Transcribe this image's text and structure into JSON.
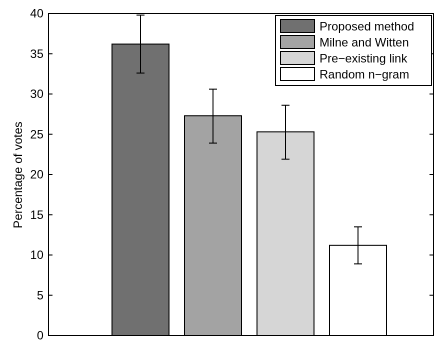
{
  "chart_data": {
    "type": "bar",
    "title": "",
    "xlabel": "",
    "ylabel": "Percentage of votes",
    "ylim": [
      0,
      40
    ],
    "yticks": [
      0,
      5,
      10,
      15,
      20,
      25,
      30,
      35,
      40
    ],
    "grid": false,
    "legend_position": "top-right",
    "series": [
      {
        "name": "Proposed method",
        "value": 36.2,
        "error_low": 32.6,
        "error_high": 39.8,
        "color": "#707070"
      },
      {
        "name": "Milne and Witten",
        "value": 27.3,
        "error_low": 23.9,
        "error_high": 30.6,
        "color": "#a3a3a3"
      },
      {
        "name": "Pre−existing link",
        "value": 25.3,
        "error_low": 21.9,
        "error_high": 28.6,
        "color": "#d6d6d6"
      },
      {
        "name": "Random n−gram",
        "value": 11.2,
        "error_low": 8.9,
        "error_high": 13.5,
        "color": "#ffffff"
      }
    ]
  }
}
